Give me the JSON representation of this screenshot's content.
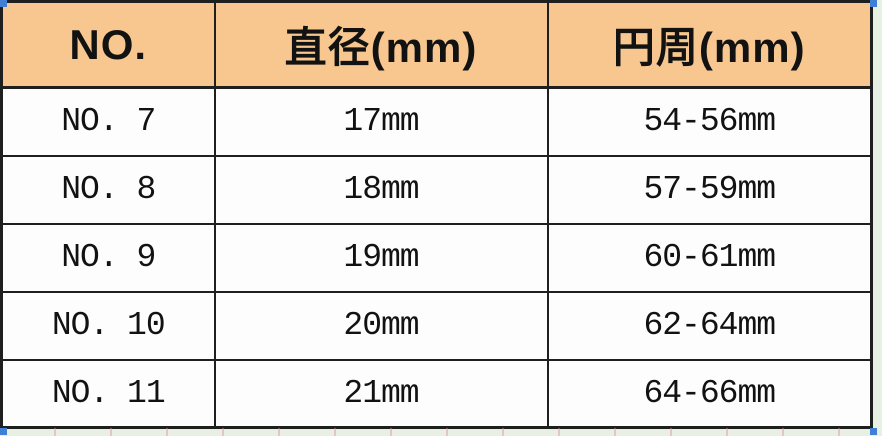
{
  "colors": {
    "header_bg": "#f7c78f",
    "border": "#1f1f1f",
    "outside_bg": "#e7f0e2",
    "selection_handle": "#3f7fd6",
    "body_bg": "#fdfdfd",
    "text": "#121212"
  },
  "table": {
    "headers": [
      {
        "label": "NO."
      },
      {
        "label": "直径(mm)"
      },
      {
        "label": "円周(mm)"
      }
    ],
    "rows": [
      {
        "no": "NO. 7",
        "diameter": "17mm",
        "circumference": "54-56mm"
      },
      {
        "no": "NO. 8",
        "diameter": "18mm",
        "circumference": "57-59mm"
      },
      {
        "no": "NO. 9",
        "diameter": "19mm",
        "circumference": "60-61mm"
      },
      {
        "no": "NO. 10",
        "diameter": "20mm",
        "circumference": "62-64mm"
      },
      {
        "no": "NO. 11",
        "diameter": "21mm",
        "circumference": "64-66mm"
      }
    ]
  }
}
